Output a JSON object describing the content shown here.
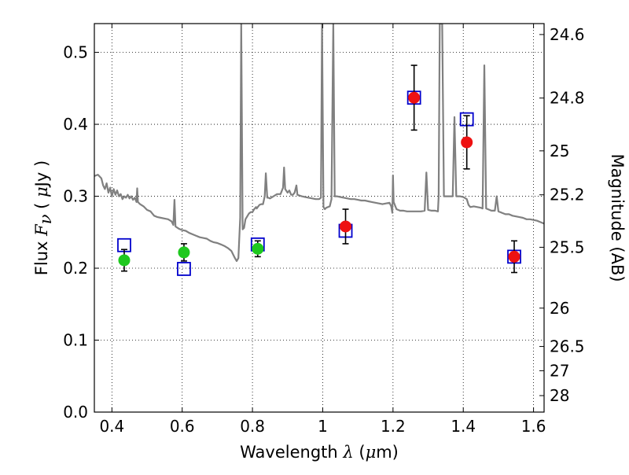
{
  "chart_data": {
    "type": "scatter",
    "title": "",
    "xlabel": {
      "prefix": "Wavelength  ",
      "symbol": "λ",
      "unit_open": " (",
      "unit_mu": "μ",
      "unit_rest": "m)"
    },
    "ylabel": {
      "prefix": "Flux  ",
      "symbol": "F",
      "subscript": "ν",
      "unit_open": "  ( ",
      "unit_mu": "μ",
      "unit_rest": "Jy )"
    },
    "y2label": "Magnitude (AB)",
    "xlim": [
      0.35,
      1.63
    ],
    "ylim": [
      0.0,
      0.54
    ],
    "grid": true,
    "legend": "none",
    "x_ticks": [
      0.4,
      0.6,
      0.8,
      1.0,
      1.2,
      1.4,
      1.6
    ],
    "x_tick_labels": [
      "0.4",
      "0.6",
      "0.8",
      "1",
      "1.2",
      "1.4",
      "1.6"
    ],
    "y_ticks": [
      0.0,
      0.1,
      0.2,
      0.3,
      0.4,
      0.5
    ],
    "y_tick_labels": [
      "0.0",
      "0.1",
      "0.2",
      "0.3",
      "0.4",
      "0.5"
    ],
    "y2_ticks": [
      {
        "label": "24.6",
        "flux": 0.5248
      },
      {
        "label": "24.8",
        "flux": 0.4365
      },
      {
        "label": "25",
        "flux": 0.3631
      },
      {
        "label": "25.2",
        "flux": 0.302
      },
      {
        "label": "25.5",
        "flux": 0.2291
      },
      {
        "label": "26",
        "flux": 0.1445
      },
      {
        "label": "26.5",
        "flux": 0.0912
      },
      {
        "label": "27",
        "flux": 0.0575
      },
      {
        "label": "28",
        "flux": 0.0229
      }
    ],
    "series": [
      {
        "kind": "model_spectrum",
        "color": "#808080",
        "points": [
          [
            0.35,
            0.328
          ],
          [
            0.36,
            0.33
          ],
          [
            0.37,
            0.325
          ],
          [
            0.375,
            0.315
          ],
          [
            0.38,
            0.31
          ],
          [
            0.385,
            0.318
          ],
          [
            0.39,
            0.305
          ],
          [
            0.395,
            0.312
          ],
          [
            0.4,
            0.3
          ],
          [
            0.405,
            0.31
          ],
          [
            0.41,
            0.302
          ],
          [
            0.415,
            0.308
          ],
          [
            0.42,
            0.3
          ],
          [
            0.425,
            0.303
          ],
          [
            0.43,
            0.296
          ],
          [
            0.435,
            0.3
          ],
          [
            0.44,
            0.298
          ],
          [
            0.445,
            0.302
          ],
          [
            0.45,
            0.297
          ],
          [
            0.455,
            0.3
          ],
          [
            0.46,
            0.295
          ],
          [
            0.465,
            0.298
          ],
          [
            0.47,
            0.292
          ],
          [
            0.472,
            0.311
          ],
          [
            0.474,
            0.292
          ],
          [
            0.48,
            0.289
          ],
          [
            0.49,
            0.286
          ],
          [
            0.5,
            0.281
          ],
          [
            0.51,
            0.279
          ],
          [
            0.52,
            0.273
          ],
          [
            0.53,
            0.271
          ],
          [
            0.54,
            0.27
          ],
          [
            0.55,
            0.269
          ],
          [
            0.56,
            0.268
          ],
          [
            0.57,
            0.265
          ],
          [
            0.575,
            0.26
          ],
          [
            0.578,
            0.295
          ],
          [
            0.581,
            0.258
          ],
          [
            0.59,
            0.255
          ],
          [
            0.6,
            0.253
          ],
          [
            0.61,
            0.252
          ],
          [
            0.62,
            0.249
          ],
          [
            0.63,
            0.247
          ],
          [
            0.64,
            0.245
          ],
          [
            0.65,
            0.243
          ],
          [
            0.66,
            0.242
          ],
          [
            0.67,
            0.241
          ],
          [
            0.68,
            0.238
          ],
          [
            0.69,
            0.236
          ],
          [
            0.7,
            0.235
          ],
          [
            0.71,
            0.233
          ],
          [
            0.72,
            0.231
          ],
          [
            0.73,
            0.228
          ],
          [
            0.74,
            0.224
          ],
          [
            0.75,
            0.214
          ],
          [
            0.755,
            0.21
          ],
          [
            0.76,
            0.214
          ],
          [
            0.765,
            0.27
          ],
          [
            0.768,
            0.54
          ],
          [
            0.772,
            0.254
          ],
          [
            0.776,
            0.256
          ],
          [
            0.78,
            0.268
          ],
          [
            0.785,
            0.272
          ],
          [
            0.79,
            0.276
          ],
          [
            0.795,
            0.278
          ],
          [
            0.8,
            0.278
          ],
          [
            0.805,
            0.282
          ],
          [
            0.81,
            0.285
          ],
          [
            0.812,
            0.283
          ],
          [
            0.815,
            0.285
          ],
          [
            0.82,
            0.288
          ],
          [
            0.825,
            0.289
          ],
          [
            0.83,
            0.289
          ],
          [
            0.835,
            0.3
          ],
          [
            0.838,
            0.332
          ],
          [
            0.842,
            0.298
          ],
          [
            0.845,
            0.298
          ],
          [
            0.85,
            0.297
          ],
          [
            0.86,
            0.3
          ],
          [
            0.87,
            0.303
          ],
          [
            0.88,
            0.303
          ],
          [
            0.887,
            0.312
          ],
          [
            0.89,
            0.34
          ],
          [
            0.893,
            0.31
          ],
          [
            0.9,
            0.305
          ],
          [
            0.905,
            0.308
          ],
          [
            0.91,
            0.302
          ],
          [
            0.915,
            0.302
          ],
          [
            0.92,
            0.305
          ],
          [
            0.925,
            0.315
          ],
          [
            0.928,
            0.302
          ],
          [
            0.94,
            0.3
          ],
          [
            0.95,
            0.299
          ],
          [
            0.96,
            0.298
          ],
          [
            0.97,
            0.297
          ],
          [
            0.98,
            0.296
          ],
          [
            0.99,
            0.296
          ],
          [
            0.995,
            0.298
          ],
          [
            0.998,
            0.54
          ],
          [
            1.002,
            0.285
          ],
          [
            1.006,
            0.282
          ],
          [
            1.01,
            0.284
          ],
          [
            1.02,
            0.286
          ],
          [
            1.025,
            0.296
          ],
          [
            1.03,
            0.54
          ],
          [
            1.034,
            0.3
          ],
          [
            1.04,
            0.3
          ],
          [
            1.05,
            0.299
          ],
          [
            1.06,
            0.298
          ],
          [
            1.07,
            0.297
          ],
          [
            1.08,
            0.296
          ],
          [
            1.09,
            0.296
          ],
          [
            1.1,
            0.295
          ],
          [
            1.11,
            0.294
          ],
          [
            1.12,
            0.294
          ],
          [
            1.13,
            0.293
          ],
          [
            1.14,
            0.292
          ],
          [
            1.15,
            0.291
          ],
          [
            1.16,
            0.29
          ],
          [
            1.17,
            0.289
          ],
          [
            1.18,
            0.29
          ],
          [
            1.19,
            0.291
          ],
          [
            1.195,
            0.286
          ],
          [
            1.198,
            0.277
          ],
          [
            1.2,
            0.329
          ],
          [
            1.202,
            0.292
          ],
          [
            1.21,
            0.282
          ],
          [
            1.22,
            0.28
          ],
          [
            1.23,
            0.28
          ],
          [
            1.24,
            0.279
          ],
          [
            1.25,
            0.279
          ],
          [
            1.26,
            0.279
          ],
          [
            1.27,
            0.279
          ],
          [
            1.28,
            0.279
          ],
          [
            1.29,
            0.28
          ],
          [
            1.295,
            0.333
          ],
          [
            1.3,
            0.281
          ],
          [
            1.31,
            0.28
          ],
          [
            1.32,
            0.28
          ],
          [
            1.328,
            0.279
          ],
          [
            1.33,
            0.3
          ],
          [
            1.333,
            0.54
          ],
          [
            1.34,
            0.54
          ],
          [
            1.345,
            0.3
          ],
          [
            1.35,
            0.3
          ],
          [
            1.36,
            0.3
          ],
          [
            1.37,
            0.3
          ],
          [
            1.375,
            0.41
          ],
          [
            1.38,
            0.3
          ],
          [
            1.39,
            0.3
          ],
          [
            1.4,
            0.299
          ],
          [
            1.41,
            0.296
          ],
          [
            1.415,
            0.288
          ],
          [
            1.42,
            0.285
          ],
          [
            1.43,
            0.286
          ],
          [
            1.44,
            0.285
          ],
          [
            1.45,
            0.284
          ],
          [
            1.455,
            0.283
          ],
          [
            1.46,
            0.482
          ],
          [
            1.465,
            0.283
          ],
          [
            1.47,
            0.282
          ],
          [
            1.48,
            0.28
          ],
          [
            1.49,
            0.28
          ],
          [
            1.495,
            0.3
          ],
          [
            1.5,
            0.279
          ],
          [
            1.51,
            0.277
          ],
          [
            1.52,
            0.275
          ],
          [
            1.53,
            0.275
          ],
          [
            1.54,
            0.273
          ],
          [
            1.55,
            0.272
          ],
          [
            1.56,
            0.271
          ],
          [
            1.57,
            0.27
          ],
          [
            1.58,
            0.268
          ],
          [
            1.59,
            0.268
          ],
          [
            1.6,
            0.267
          ],
          [
            1.61,
            0.266
          ],
          [
            1.62,
            0.264
          ],
          [
            1.63,
            0.262
          ]
        ]
      },
      {
        "kind": "model_photometry",
        "marker": "open-square",
        "color": "#0000cc",
        "points": [
          [
            0.435,
            0.232
          ],
          [
            0.605,
            0.199
          ],
          [
            0.815,
            0.233
          ],
          [
            1.065,
            0.252
          ],
          [
            1.26,
            0.437
          ],
          [
            1.41,
            0.407
          ],
          [
            1.545,
            0.216
          ]
        ]
      },
      {
        "kind": "observed_optical",
        "marker": "filled-circle",
        "color": "#1ec81e",
        "points": [
          [
            0.435,
            0.211
          ],
          [
            0.605,
            0.222
          ],
          [
            0.815,
            0.227
          ]
        ],
        "yerr": [
          0.015,
          0.012,
          0.011
        ]
      },
      {
        "kind": "observed_nir",
        "marker": "filled-circle",
        "color": "#ee1111",
        "points": [
          [
            1.065,
            0.258
          ],
          [
            1.26,
            0.437
          ],
          [
            1.41,
            0.375
          ],
          [
            1.545,
            0.216
          ]
        ],
        "yerr": [
          0.024,
          0.045,
          0.037,
          0.022
        ]
      }
    ]
  }
}
